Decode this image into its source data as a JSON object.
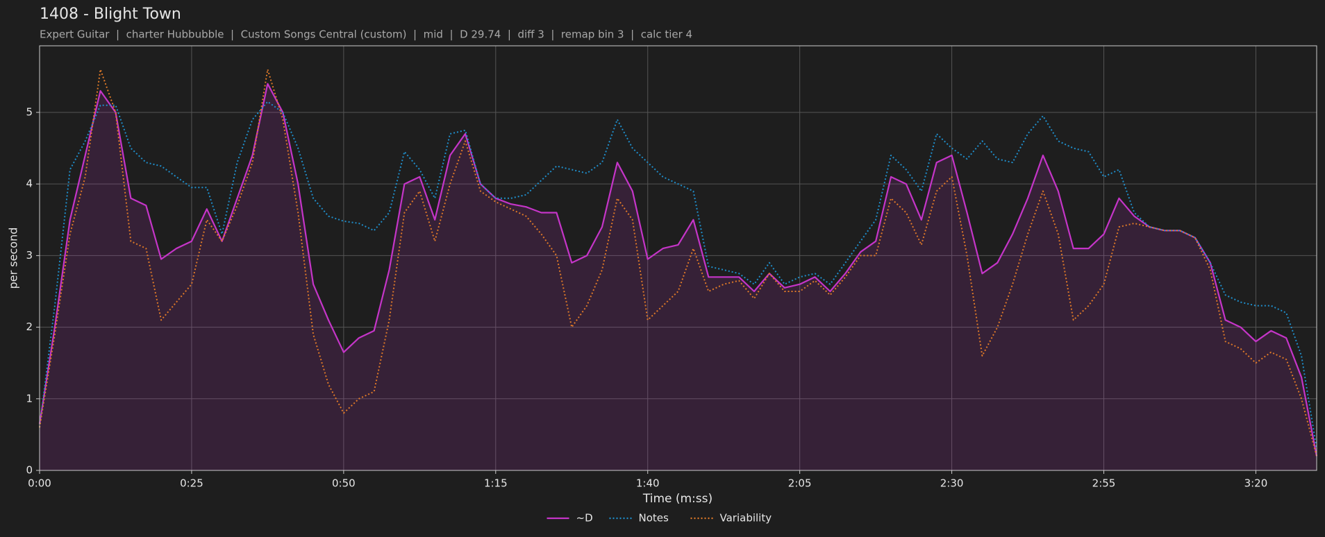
{
  "chart_data": {
    "type": "line",
    "title": "1408 - Blight Town",
    "subtitle": "Expert Guitar  |  charter Hubbubble  |  Custom Songs Central (custom)  |  mid  |  D 29.74  |  diff 3  |  remap bin 3  |  calc tier 4",
    "xlabel": "Time (m:ss)",
    "ylabel": "per second",
    "x": [
      0,
      2.5,
      5,
      7.5,
      10,
      12.5,
      15,
      17.5,
      20,
      22.5,
      25,
      27.5,
      30,
      32.5,
      35,
      37.5,
      40,
      42.5,
      45,
      47.5,
      50,
      52.5,
      55,
      57.5,
      60,
      62.5,
      65,
      67.5,
      70,
      72.5,
      75,
      77.5,
      80,
      82.5,
      85,
      87.5,
      90,
      92.5,
      95,
      97.5,
      100,
      102.5,
      105,
      107.5,
      110,
      112.5,
      115,
      117.5,
      120,
      122.5,
      125,
      127.5,
      130,
      132.5,
      135,
      137.5,
      140,
      142.5,
      145,
      147.5,
      150,
      152.5,
      155,
      157.5,
      160,
      162.5,
      165,
      167.5,
      170,
      172.5,
      175,
      177.5,
      180,
      182.5,
      185,
      187.5,
      190,
      192.5,
      195,
      197.5,
      200,
      202.5,
      205,
      207.5,
      210
    ],
    "series": [
      {
        "name": "~D",
        "color": "#c535c8",
        "style": "solid",
        "fill": true,
        "values": [
          0.65,
          2.0,
          3.5,
          4.4,
          5.3,
          5.0,
          3.8,
          3.7,
          2.95,
          3.1,
          3.2,
          3.65,
          3.2,
          3.8,
          4.4,
          5.4,
          5.0,
          4.0,
          2.6,
          2.1,
          1.65,
          1.85,
          1.95,
          2.8,
          4.0,
          4.1,
          3.5,
          4.4,
          4.7,
          4.0,
          3.8,
          3.72,
          3.68,
          3.6,
          3.6,
          2.9,
          3.0,
          3.4,
          4.3,
          3.9,
          2.95,
          3.1,
          3.15,
          3.5,
          2.7,
          2.7,
          2.7,
          2.5,
          2.75,
          2.55,
          2.6,
          2.7,
          2.5,
          2.75,
          3.05,
          3.2,
          4.1,
          4.0,
          3.5,
          4.3,
          4.4,
          3.6,
          2.75,
          2.9,
          3.3,
          3.8,
          4.4,
          3.9,
          3.1,
          3.1,
          3.3,
          3.8,
          3.55,
          3.4,
          3.35,
          3.35,
          3.25,
          2.9,
          2.1,
          2.0,
          1.8,
          1.95,
          1.85,
          1.3,
          0.2
        ]
      },
      {
        "name": "Notes",
        "color": "#1f8fcc",
        "style": "dotted",
        "values": [
          0.6,
          2.3,
          4.2,
          4.6,
          5.1,
          5.1,
          4.5,
          4.3,
          4.25,
          4.1,
          3.95,
          3.95,
          3.3,
          4.3,
          4.9,
          5.15,
          5.0,
          4.5,
          3.8,
          3.55,
          3.48,
          3.45,
          3.35,
          3.6,
          4.45,
          4.2,
          3.8,
          4.7,
          4.75,
          4.0,
          3.8,
          3.8,
          3.85,
          4.05,
          4.25,
          4.2,
          4.15,
          4.3,
          4.9,
          4.5,
          4.3,
          4.1,
          4.0,
          3.9,
          2.85,
          2.8,
          2.75,
          2.6,
          2.9,
          2.6,
          2.7,
          2.75,
          2.6,
          2.9,
          3.2,
          3.5,
          4.4,
          4.2,
          3.9,
          4.7,
          4.5,
          4.35,
          4.6,
          4.35,
          4.3,
          4.7,
          4.95,
          4.6,
          4.5,
          4.45,
          4.1,
          4.2,
          3.6,
          3.4,
          3.35,
          3.35,
          3.25,
          2.9,
          2.45,
          2.35,
          2.3,
          2.3,
          2.2,
          1.6,
          0.3
        ]
      },
      {
        "name": "Variability",
        "color": "#e07a28",
        "style": "dotted",
        "values": [
          0.6,
          1.9,
          3.3,
          4.1,
          5.6,
          5.0,
          3.2,
          3.1,
          2.1,
          2.35,
          2.6,
          3.5,
          3.2,
          3.7,
          4.3,
          5.6,
          4.9,
          3.6,
          1.9,
          1.2,
          0.8,
          1.0,
          1.1,
          2.1,
          3.6,
          3.9,
          3.2,
          4.0,
          4.6,
          3.9,
          3.75,
          3.65,
          3.55,
          3.3,
          3.0,
          2.0,
          2.3,
          2.8,
          3.8,
          3.5,
          2.1,
          2.3,
          2.5,
          3.1,
          2.5,
          2.6,
          2.65,
          2.4,
          2.75,
          2.5,
          2.5,
          2.65,
          2.45,
          2.7,
          3.0,
          3.0,
          3.8,
          3.6,
          3.15,
          3.9,
          4.1,
          3.0,
          1.6,
          2.0,
          2.6,
          3.3,
          3.9,
          3.3,
          2.1,
          2.3,
          2.6,
          3.4,
          3.45,
          3.4,
          3.35,
          3.35,
          3.25,
          2.8,
          1.8,
          1.7,
          1.5,
          1.65,
          1.55,
          1.0,
          0.2
        ]
      }
    ],
    "xlim": [
      0,
      210
    ],
    "xticks": [
      {
        "value": 0,
        "label": "0:00"
      },
      {
        "value": 25,
        "label": "0:25"
      },
      {
        "value": 50,
        "label": "0:50"
      },
      {
        "value": 75,
        "label": "1:15"
      },
      {
        "value": 100,
        "label": "1:40"
      },
      {
        "value": 125,
        "label": "2:05"
      },
      {
        "value": 150,
        "label": "2:30"
      },
      {
        "value": 175,
        "label": "2:55"
      },
      {
        "value": 200,
        "label": "3:20"
      }
    ],
    "ylim": [
      0,
      5.93
    ],
    "yticks": [
      0,
      1,
      2,
      3,
      4,
      5
    ],
    "grid": true,
    "legend": "bottom"
  }
}
